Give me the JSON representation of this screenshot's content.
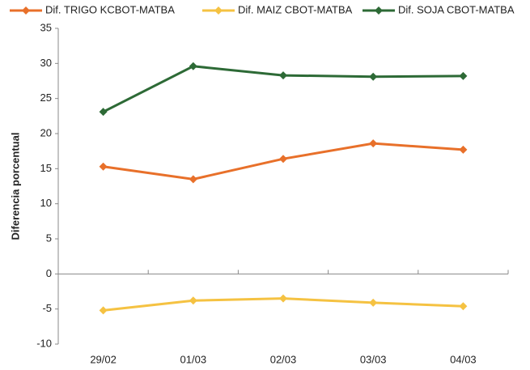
{
  "chart_data": {
    "type": "line",
    "y_label": "Diferencia porcentual",
    "categories": [
      "29/02",
      "01/03",
      "02/03",
      "03/03",
      "04/03"
    ],
    "series": [
      {
        "name": "Dif. TRIGO KCBOT-MATBA",
        "color": "#e8702a",
        "values": [
          15.3,
          13.5,
          16.4,
          18.6,
          17.7
        ]
      },
      {
        "name": "Dif. MAIZ CBOT-MATBA",
        "color": "#f5c242",
        "values": [
          -5.2,
          -3.8,
          -3.5,
          -4.1,
          -4.6
        ]
      },
      {
        "name": "Dif. SOJA CBOT-MATBA",
        "color": "#2d6a36",
        "values": [
          23.1,
          29.6,
          28.3,
          28.1,
          28.2
        ]
      }
    ],
    "ylim": [
      -10,
      35
    ],
    "yticks": [
      -10,
      -5,
      0,
      5,
      10,
      15,
      20,
      25,
      30,
      35
    ],
    "grid": false,
    "legend": "top"
  }
}
